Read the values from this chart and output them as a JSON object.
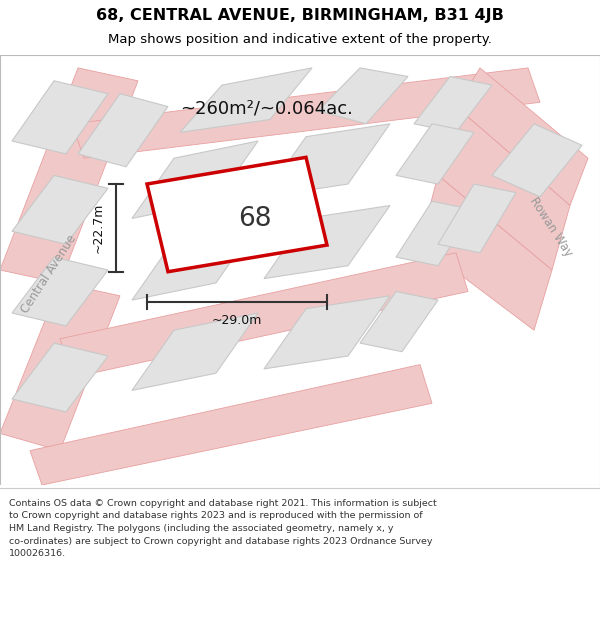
{
  "title": "68, CENTRAL AVENUE, BIRMINGHAM, B31 4JB",
  "subtitle": "Map shows position and indicative extent of the property.",
  "footer_text": "Contains OS data © Crown copyright and database right 2021. This information is subject\nto Crown copyright and database rights 2023 and is reproduced with the permission of\nHM Land Registry. The polygons (including the associated geometry, namely x, y\nco-ordinates) are subject to Crown copyright and database rights 2023 Ordnance Survey\n100026316.",
  "area_label": "~260m²/~0.064ac.",
  "width_label": "~29.0m",
  "height_label": "~22.7m",
  "street_label_left": "Central Avenue",
  "street_label_right": "Rowan Way",
  "plot_number": "68",
  "map_bg": "#f2f0ee",
  "plot_outline_color": "#cc0000",
  "building_fill": "#e2e2e2",
  "building_outline": "#c8c8c8",
  "road_color": "#f0c8c8",
  "road_outline": "#e8a0a0",
  "dim_line_color": "#333333",
  "street_label_color": "#999999",
  "title_color": "#000000",
  "footer_color": "#333333"
}
